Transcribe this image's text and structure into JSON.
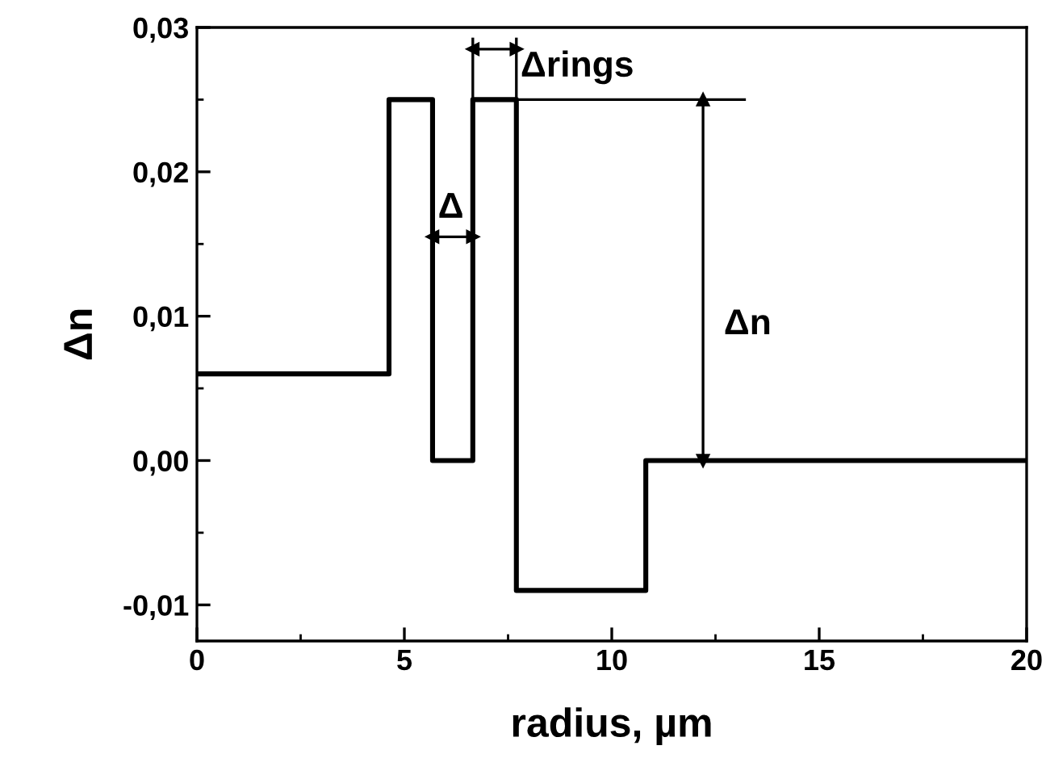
{
  "chart_data": {
    "type": "step",
    "xlabel": "radius, µm",
    "ylabel": "Δn",
    "xlim": [
      0,
      20
    ],
    "xticks": [
      0,
      5,
      10,
      15,
      20
    ],
    "ylim": [
      -0.0125,
      0.03
    ],
    "yticks": [
      {
        "value": -0.01,
        "label": "-0,01"
      },
      {
        "value": 0.0,
        "label": "0,00"
      },
      {
        "value": 0.01,
        "label": "0,01"
      },
      {
        "value": 0.02,
        "label": "0,02"
      },
      {
        "value": 0.03,
        "label": "0,03"
      }
    ],
    "grid": false,
    "line_style": "solid",
    "series": [
      {
        "color": "#000000",
        "x": [
          0,
          4.63,
          5.68,
          6.65,
          7.7,
          10.82,
          20
        ],
        "values": [
          0.006,
          0.025,
          0.0,
          0.025,
          -0.009,
          0.0,
          0.0
        ]
      },
      {
        "type": "line",
        "color": "#000000",
        "x": [
          6.65,
          6.65
        ],
        "values": [
          0.025,
          0.0292
        ]
      },
      {
        "type": "line",
        "color": "#000000",
        "x": [
          7.7,
          7.7
        ],
        "values": [
          0.025,
          0.0292
        ]
      },
      {
        "type": "line",
        "color": "#000000",
        "x": [
          7.7,
          13.2
        ],
        "values": [
          0.025,
          0.025
        ]
      },
      {
        "type": "line",
        "color": "#000000",
        "marker": "triangle",
        "x": [
          5.68,
          6.65
        ],
        "values": [
          0.0155,
          0.0155
        ]
      },
      {
        "type": "line",
        "color": "#000000",
        "marker": "triangle",
        "x": [
          6.65,
          7.7
        ],
        "values": [
          0.0285,
          0.0285
        ]
      },
      {
        "type": "line",
        "color": "#000000",
        "marker": "triangle",
        "x": [
          12.2,
          12.2
        ],
        "values": [
          0.0,
          0.025
        ]
      }
    ],
    "annotations": [
      "Δ",
      "Δrings",
      "Δn"
    ]
  }
}
